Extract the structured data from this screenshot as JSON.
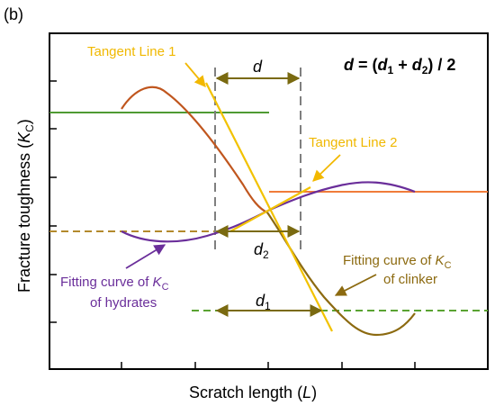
{
  "panel_label": "(b)",
  "formula": {
    "d": "d",
    "eq": " = (",
    "d1": "d",
    "s1": "1",
    "plus": " + ",
    "d2": "d",
    "s2": "2",
    "tail": ") / 2"
  },
  "axes": {
    "xlabel": {
      "main": "Scratch length (",
      "var": "L",
      "close": ")"
    },
    "ylabel": {
      "main": "Fracture toughness (",
      "var": "K",
      "sub": "C",
      "close": ")"
    }
  },
  "annotations": {
    "tangent1": "Tangent Line 1",
    "tangent2": "Tangent Line 2",
    "d_label": "d",
    "d1_label": {
      "var": "d",
      "sub": "1"
    },
    "d2_label": {
      "var": "d",
      "sub": "2"
    },
    "hydrates": {
      "line1_pre": "Fitting curve of ",
      "var": "K",
      "sub": "C",
      "line2": "of hydrates"
    },
    "clinker": {
      "line1_pre": "Fitting curve of ",
      "var": "K",
      "sub": "C",
      "line2": "of clinker"
    }
  },
  "colors": {
    "clinker_curve": "#c0561e",
    "clinker_curve_low": "#8c6a10",
    "hydrates_curve": "#6a2e9a",
    "tangent": "#f2c200",
    "green_line": "#4f9a33",
    "orange_line": "#f07c3a",
    "hydrate_dash": "#b38a2c",
    "clinker_dash": "#5aa332",
    "dim_arrow": "#7a6a10",
    "annot_text": "#f0b800",
    "hydrates_text": "#6a2e9a",
    "clinker_text": "#8c6a10",
    "gray_dash": "#7f7f7f"
  }
}
